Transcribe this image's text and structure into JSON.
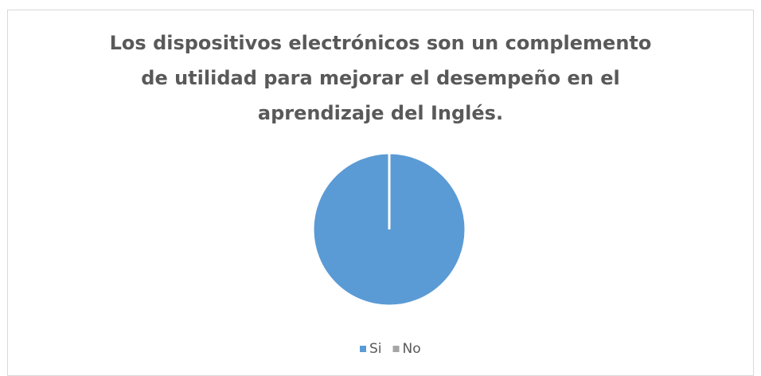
{
  "chart_data": {
    "type": "pie",
    "title": "Los dispositivos electrónicos son un complemento de utilidad para mejorar el desempeño en el aprendizaje del Inglés.",
    "categories": [
      "Si",
      "No"
    ],
    "values": [
      100,
      0
    ],
    "colors": [
      "#5b9bd5",
      "#a5a5a5"
    ],
    "legend": "bottom"
  }
}
